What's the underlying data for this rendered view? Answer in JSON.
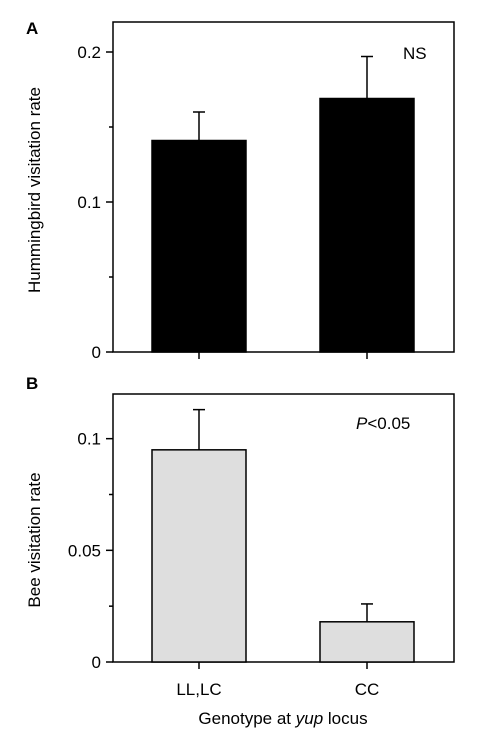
{
  "chart_data": [
    {
      "panel": "A",
      "type": "bar",
      "categories": [
        "LL,LC",
        "CC"
      ],
      "values": [
        0.141,
        0.169
      ],
      "errors": [
        0.019,
        0.028
      ],
      "ylabel": "Hummingbird visitation rate",
      "ylim": [
        0,
        0.22
      ],
      "yticks": [
        0,
        0.1,
        0.2
      ],
      "ytick_labels": [
        "0",
        "0.1",
        "0.2"
      ],
      "yminor": [
        0.05,
        0.15
      ],
      "annotation": "NS",
      "bar_color": "#000000"
    },
    {
      "panel": "B",
      "type": "bar",
      "categories": [
        "LL,LC",
        "CC"
      ],
      "values": [
        0.095,
        0.018
      ],
      "errors": [
        0.018,
        0.008
      ],
      "ylabel": "Bee visitation rate",
      "ylim": [
        0,
        0.12
      ],
      "yticks": [
        0,
        0.05,
        0.1
      ],
      "ytick_labels": [
        "0",
        "0.05",
        "0.1"
      ],
      "yminor": [
        0.025,
        0.075
      ],
      "annotation_p": "P",
      "annotation_rest": "<0.05",
      "bar_color": "#dedede",
      "xtick_labels": [
        "LL,LC",
        "CC"
      ],
      "xlabel_prefix": "Genotype at ",
      "xlabel_italic": "yup",
      "xlabel_suffix": " locus"
    }
  ]
}
